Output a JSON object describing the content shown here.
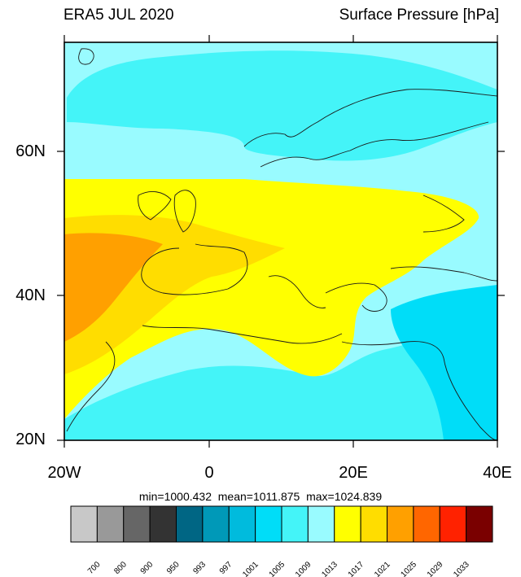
{
  "header": {
    "left_title": "ERA5 JUL 2020",
    "right_title": "Surface Pressure [hPa]"
  },
  "map": {
    "lat_labels": [
      "60N",
      "40N",
      "20N"
    ],
    "lon_labels": [
      "20W",
      "0",
      "20E",
      "40E"
    ],
    "lat_range": [
      20,
      75
    ],
    "lon_range": [
      -20,
      40
    ]
  },
  "stats": {
    "text": "min=1000.432  mean=1011.875  max=1024.839"
  },
  "colorbar": {
    "colors": [
      "#c8c8c8",
      "#999999",
      "#666666",
      "#333333",
      "#006684",
      "#0099b8",
      "#00bbdd",
      "#00ddf8",
      "#44f4f8",
      "#99fbff",
      "#ffff00",
      "#ffdd00",
      "#ffa000",
      "#ff6600",
      "#ff2200",
      "#7a0000"
    ],
    "labels": [
      "700",
      "800",
      "900",
      "950",
      "993",
      "997",
      "1001",
      "1005",
      "1009",
      "1013",
      "1017",
      "1021",
      "1025",
      "1029",
      "1033"
    ]
  }
}
